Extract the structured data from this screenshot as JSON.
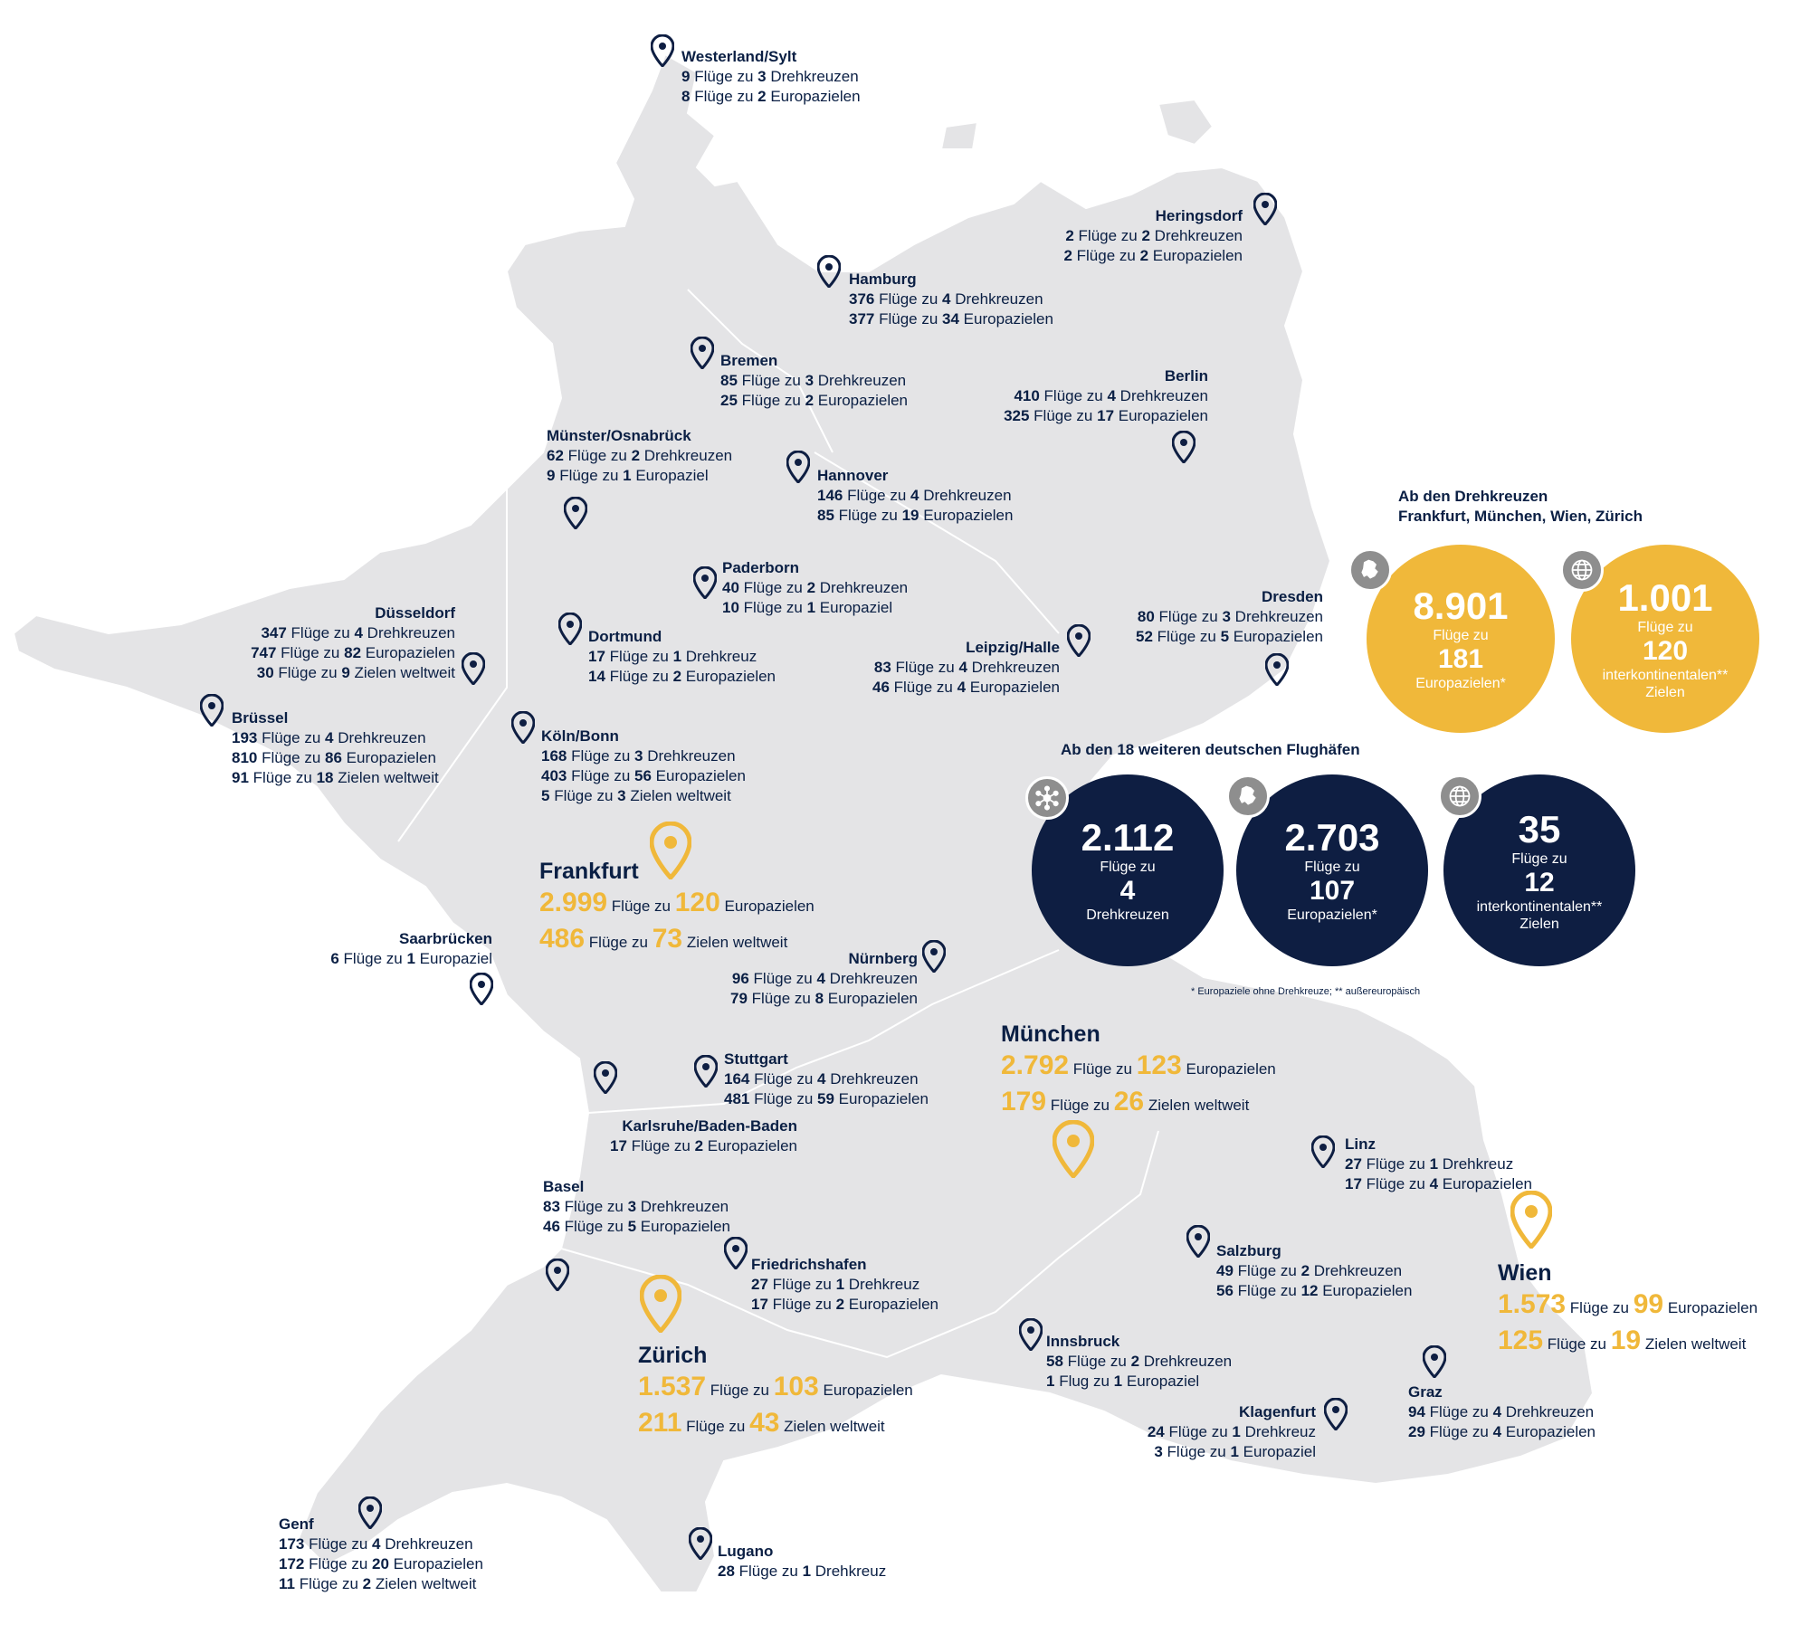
{
  "map": {
    "land_color": "#e4e4e6",
    "border_color": "#ffffff",
    "marker_color": "#0e1e42",
    "hub_marker_color": "#f0b83a"
  },
  "airports": {
    "westerland": {
      "name": "Westerland/Sylt",
      "l1": {
        "n1": "9",
        "t1": " Flüge zu ",
        "n2": "3",
        "t2": " Drehkreuzen"
      },
      "l2": {
        "n1": "8",
        "t1": " Flüge zu ",
        "n2": "2",
        "t2": " Europazielen"
      }
    },
    "heringsdorf": {
      "name": "Heringsdorf",
      "l1": {
        "n1": "2",
        "t1": " Flüge zu ",
        "n2": "2",
        "t2": " Drehkreuzen"
      },
      "l2": {
        "n1": "2",
        "t1": " Flüge zu ",
        "n2": "2",
        "t2": " Europazielen"
      }
    },
    "hamburg": {
      "name": "Hamburg",
      "l1": {
        "n1": "376",
        "t1": " Flüge zu ",
        "n2": "4",
        "t2": " Drehkreuzen"
      },
      "l2": {
        "n1": "377",
        "t1": " Flüge zu ",
        "n2": "34",
        "t2": " Europazielen"
      }
    },
    "bremen": {
      "name": "Bremen",
      "l1": {
        "n1": "85",
        "t1": " Flüge zu ",
        "n2": "3",
        "t2": " Drehkreuzen"
      },
      "l2": {
        "n1": "25",
        "t1": " Flüge zu ",
        "n2": "2",
        "t2": " Europazielen"
      }
    },
    "berlin": {
      "name": "Berlin",
      "l1": {
        "n1": "410",
        "t1": " Flüge zu ",
        "n2": "4",
        "t2": " Drehkreuzen"
      },
      "l2": {
        "n1": "325",
        "t1": " Flüge zu ",
        "n2": "17",
        "t2": " Europazielen"
      }
    },
    "muenster": {
      "name": "Münster/Osnabrück",
      "l1": {
        "n1": "62",
        "t1": " Flüge zu ",
        "n2": "2",
        "t2": " Drehkreuzen"
      },
      "l2": {
        "n1": "9",
        "t1": " Flüge zu ",
        "n2": "1",
        "t2": " Europaziel"
      }
    },
    "hannover": {
      "name": "Hannover",
      "l1": {
        "n1": "146",
        "t1": " Flüge zu ",
        "n2": "4",
        "t2": " Drehkreuzen"
      },
      "l2": {
        "n1": "85",
        "t1": " Flüge zu ",
        "n2": "19",
        "t2": " Europazielen"
      }
    },
    "paderborn": {
      "name": "Paderborn",
      "l1": {
        "n1": "40",
        "t1": " Flüge zu ",
        "n2": "2",
        "t2": " Drehkreuzen"
      },
      "l2": {
        "n1": "10",
        "t1": " Flüge zu ",
        "n2": "1",
        "t2": " Europaziel"
      }
    },
    "dresden": {
      "name": "Dresden",
      "l1": {
        "n1": "80",
        "t1": " Flüge zu ",
        "n2": "3",
        "t2": " Drehkreuzen"
      },
      "l2": {
        "n1": "52",
        "t1": " Flüge zu ",
        "n2": "5",
        "t2": " Europazielen"
      }
    },
    "duesseldorf": {
      "name": "Düsseldorf",
      "l1": {
        "n1": "347",
        "t1": " Flüge zu ",
        "n2": "4",
        "t2": " Drehkreuzen"
      },
      "l2": {
        "n1": "747",
        "t1": " Flüge zu ",
        "n2": "82",
        "t2": " Europazielen"
      },
      "l3": {
        "n1": "30",
        "t1": " Flüge zu ",
        "n2": "9",
        "t2": " Zielen weltweit"
      }
    },
    "dortmund": {
      "name": "Dortmund",
      "l1": {
        "n1": "17",
        "t1": " Flüge zu ",
        "n2": "1",
        "t2": " Drehkreuz"
      },
      "l2": {
        "n1": "14",
        "t1": " Flüge zu ",
        "n2": "2",
        "t2": " Europazielen"
      }
    },
    "leipzig": {
      "name": "Leipzig/Halle",
      "l1": {
        "n1": "83",
        "t1": " Flüge zu ",
        "n2": "4",
        "t2": " Drehkreuzen"
      },
      "l2": {
        "n1": "46",
        "t1": " Flüge zu ",
        "n2": "4",
        "t2": " Europazielen"
      }
    },
    "bruessel": {
      "name": "Brüssel",
      "l1": {
        "n1": "193",
        "t1": " Flüge zu ",
        "n2": "4",
        "t2": " Drehkreuzen"
      },
      "l2": {
        "n1": "810",
        "t1": " Flüge zu ",
        "n2": "86",
        "t2": " Europazielen"
      },
      "l3": {
        "n1": "91",
        "t1": " Flüge zu ",
        "n2": "18",
        "t2": " Zielen weltweit"
      }
    },
    "koeln": {
      "name": "Köln/Bonn",
      "l1": {
        "n1": "168",
        "t1": " Flüge zu ",
        "n2": "3",
        "t2": " Drehkreuzen"
      },
      "l2": {
        "n1": "403",
        "t1": " Flüge zu ",
        "n2": "56",
        "t2": " Europazielen"
      },
      "l3": {
        "n1": "5",
        "t1": " Flüge zu ",
        "n2": "3",
        "t2": " Zielen weltweit"
      }
    },
    "saarbruecken": {
      "name": "Saarbrücken",
      "l1": {
        "n1": "6",
        "t1": " Flüge zu ",
        "n2": "1",
        "t2": " Europaziel"
      }
    },
    "nuernberg": {
      "name": "Nürnberg",
      "l1": {
        "n1": "96",
        "t1": " Flüge zu ",
        "n2": "4",
        "t2": " Drehkreuzen"
      },
      "l2": {
        "n1": "79",
        "t1": " Flüge zu ",
        "n2": "8",
        "t2": " Europazielen"
      }
    },
    "stuttgart": {
      "name": "Stuttgart",
      "l1": {
        "n1": "164",
        "t1": " Flüge zu ",
        "n2": "4",
        "t2": " Drehkreuzen"
      },
      "l2": {
        "n1": "481",
        "t1": " Flüge zu ",
        "n2": "59",
        "t2": " Europazielen"
      }
    },
    "karlsruhe": {
      "name": "Karlsruhe/Baden-Baden",
      "l1": {
        "n1": "17",
        "t1": " Flüge zu ",
        "n2": "2",
        "t2": " Europazielen"
      }
    },
    "linz": {
      "name": "Linz",
      "l1": {
        "n1": "27",
        "t1": " Flüge zu ",
        "n2": "1",
        "t2": " Drehkreuz"
      },
      "l2": {
        "n1": "17",
        "t1": " Flüge zu ",
        "n2": "4",
        "t2": " Europazielen"
      }
    },
    "basel": {
      "name": "Basel",
      "l1": {
        "n1": "83",
        "t1": " Flüge zu ",
        "n2": "3",
        "t2": " Drehkreuzen"
      },
      "l2": {
        "n1": "46",
        "t1": " Flüge zu ",
        "n2": "5",
        "t2": " Europazielen"
      }
    },
    "friedrichshafen": {
      "name": "Friedrichshafen",
      "l1": {
        "n1": "27",
        "t1": " Flüge zu ",
        "n2": "1",
        "t2": " Drehkreuz"
      },
      "l2": {
        "n1": "17",
        "t1": " Flüge zu ",
        "n2": "2",
        "t2": " Europazielen"
      }
    },
    "salzburg": {
      "name": "Salzburg",
      "l1": {
        "n1": "49",
        "t1": " Flüge zu ",
        "n2": "2",
        "t2": " Drehkreuzen"
      },
      "l2": {
        "n1": "56",
        "t1": " Flüge zu ",
        "n2": "12",
        "t2": " Europazielen"
      }
    },
    "innsbruck": {
      "name": "Innsbruck",
      "l1": {
        "n1": "58",
        "t1": " Flüge zu ",
        "n2": "2",
        "t2": " Drehkreuzen"
      },
      "l2": {
        "n1": "1",
        "t1": " Flug zu ",
        "n2": "1",
        "t2": " Europaziel"
      }
    },
    "graz": {
      "name": "Graz",
      "l1": {
        "n1": "94",
        "t1": " Flüge zu ",
        "n2": "4",
        "t2": " Drehkreuzen"
      },
      "l2": {
        "n1": "29",
        "t1": " Flüge zu ",
        "n2": "4",
        "t2": " Europazielen"
      }
    },
    "klagenfurt": {
      "name": "Klagenfurt",
      "l1": {
        "n1": "24",
        "t1": " Flüge zu ",
        "n2": "1",
        "t2": " Drehkreuz"
      },
      "l2": {
        "n1": "3",
        "t1": " Flüge zu ",
        "n2": "1",
        "t2": " Europaziel"
      }
    },
    "genf": {
      "name": "Genf",
      "l1": {
        "n1": "173",
        "t1": " Flüge zu ",
        "n2": "4",
        "t2": " Drehkreuzen"
      },
      "l2": {
        "n1": "172",
        "t1": " Flüge zu ",
        "n2": "20",
        "t2": " Europazielen"
      },
      "l3": {
        "n1": "11",
        "t1": " Flüge zu ",
        "n2": "2",
        "t2": " Zielen weltweit"
      }
    },
    "lugano": {
      "name": "Lugano",
      "l1": {
        "n1": "28",
        "t1": " Flüge zu ",
        "n2": "1",
        "t2": " Drehkreuz"
      }
    }
  },
  "hubs": {
    "frankfurt": {
      "name": "Frankfurt",
      "l1": {
        "n1": "2.999",
        "t1": " Flüge zu ",
        "n2": "120",
        "t2": " Europazielen"
      },
      "l2": {
        "n1": "486",
        "t1": " Flüge zu ",
        "n2": "73",
        "t2": " Zielen weltweit"
      }
    },
    "muenchen": {
      "name": "München",
      "l1": {
        "n1": "2.792",
        "t1": " Flüge zu ",
        "n2": "123",
        "t2": " Europazielen"
      },
      "l2": {
        "n1": "179",
        "t1": " Flüge zu ",
        "n2": "26",
        "t2": " Zielen weltweit"
      }
    },
    "wien": {
      "name": "Wien",
      "l1": {
        "n1": "1.573",
        "t1": " Flüge zu ",
        "n2": "99",
        "t2": " Europazielen"
      },
      "l2": {
        "n1": "125",
        "t1": " Flüge zu ",
        "n2": "19",
        "t2": " Zielen weltweit"
      }
    },
    "zuerich": {
      "name": "Zürich",
      "l1": {
        "n1": "1.537",
        "t1": " Flüge zu ",
        "n2": "103",
        "t2": " Europazielen"
      },
      "l2": {
        "n1": "211",
        "t1": " Flüge zu ",
        "n2": "43",
        "t2": " Zielen weltweit"
      }
    }
  },
  "summary": {
    "hubs_title_1": "Ab den Drehkreuzen",
    "hubs_title_2": "Frankfurt, München, Wien, Zürich",
    "hub_circle_1": {
      "big": "8.901",
      "l1": "Flüge zu",
      "mid": "181",
      "l2": "Europazielen*",
      "icon": "europe-icon"
    },
    "hub_circle_2": {
      "big": "1.001",
      "l1": "Flüge zu",
      "mid": "120",
      "l2": "interkontinentalen**",
      "l3": "Zielen",
      "icon": "globe-icon"
    },
    "others_title": "Ab den 18 weiteren deutschen Flughäfen",
    "other_circle_1": {
      "big": "2.112",
      "l1": "Flüge zu",
      "mid": "4",
      "l2": "Drehkreuzen",
      "icon": "network-icon"
    },
    "other_circle_2": {
      "big": "2.703",
      "l1": "Flüge zu",
      "mid": "107",
      "l2": "Europazielen*",
      "icon": "europe-icon"
    },
    "other_circle_3": {
      "big": "35",
      "l1": "Flüge zu",
      "mid": "12",
      "l2": "interkontinentalen**",
      "l3": "Zielen",
      "icon": "globe-icon"
    },
    "footnote": "* Europaziele ohne Drehkreuze; ** außereuropäisch"
  }
}
